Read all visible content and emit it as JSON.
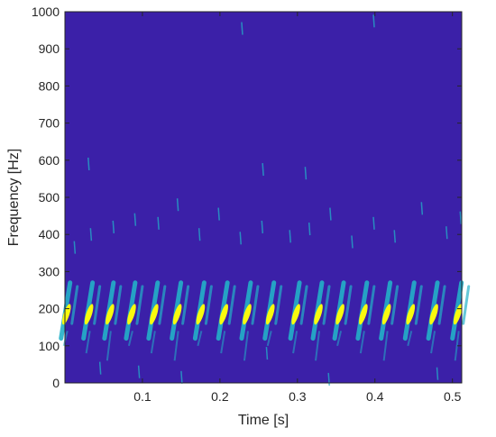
{
  "chart_data": {
    "type": "heatmap",
    "title": "",
    "xlabel": "Time [s]",
    "ylabel": "Frequency [Hz]",
    "xlim": [
      0.0,
      0.512
    ],
    "ylim": [
      0,
      1000
    ],
    "xticks": [
      0.1,
      0.2,
      0.3,
      0.4,
      0.5
    ],
    "xtick_labels": [
      "0.1",
      "0.2",
      "0.3",
      "0.4",
      "0.5"
    ],
    "yticks": [
      0,
      100,
      200,
      300,
      400,
      500,
      600,
      700,
      800,
      900,
      1000
    ],
    "ytick_labels": [
      "0",
      "100",
      "200",
      "300",
      "400",
      "500",
      "600",
      "700",
      "800",
      "900",
      "1000"
    ],
    "grid": false,
    "colormap": "parula",
    "background_color": "#3b20a8",
    "colors": {
      "low": "#3b20a8",
      "mid": "#23b0c8",
      "high": "#f9fb0e"
    },
    "ridge": {
      "description_units": "pulse train of spectral energy",
      "pulse_times": [
        0.002,
        0.031,
        0.058,
        0.086,
        0.115,
        0.145,
        0.175,
        0.205,
        0.235,
        0.265,
        0.298,
        0.327,
        0.355,
        0.385,
        0.415,
        0.446,
        0.476,
        0.507
      ],
      "peak_frequency": 185,
      "frequency_range": [
        140,
        270
      ]
    },
    "sparse_points": [
      [
        0.012,
        365
      ],
      [
        0.033,
        400
      ],
      [
        0.062,
        420
      ],
      [
        0.09,
        440
      ],
      [
        0.12,
        430
      ],
      [
        0.145,
        480
      ],
      [
        0.173,
        400
      ],
      [
        0.198,
        455
      ],
      [
        0.226,
        390
      ],
      [
        0.254,
        420
      ],
      [
        0.29,
        395
      ],
      [
        0.315,
        415
      ],
      [
        0.342,
        455
      ],
      [
        0.37,
        380
      ],
      [
        0.398,
        430
      ],
      [
        0.425,
        395
      ],
      [
        0.46,
        470
      ],
      [
        0.492,
        405
      ],
      [
        0.51,
        445
      ],
      [
        0.045,
        40
      ],
      [
        0.095,
        30
      ],
      [
        0.15,
        15
      ],
      [
        0.26,
        80
      ],
      [
        0.34,
        10
      ],
      [
        0.48,
        25
      ],
      [
        0.228,
        955
      ],
      [
        0.398,
        975
      ],
      [
        0.255,
        575
      ],
      [
        0.31,
        565
      ],
      [
        0.03,
        590
      ]
    ]
  }
}
